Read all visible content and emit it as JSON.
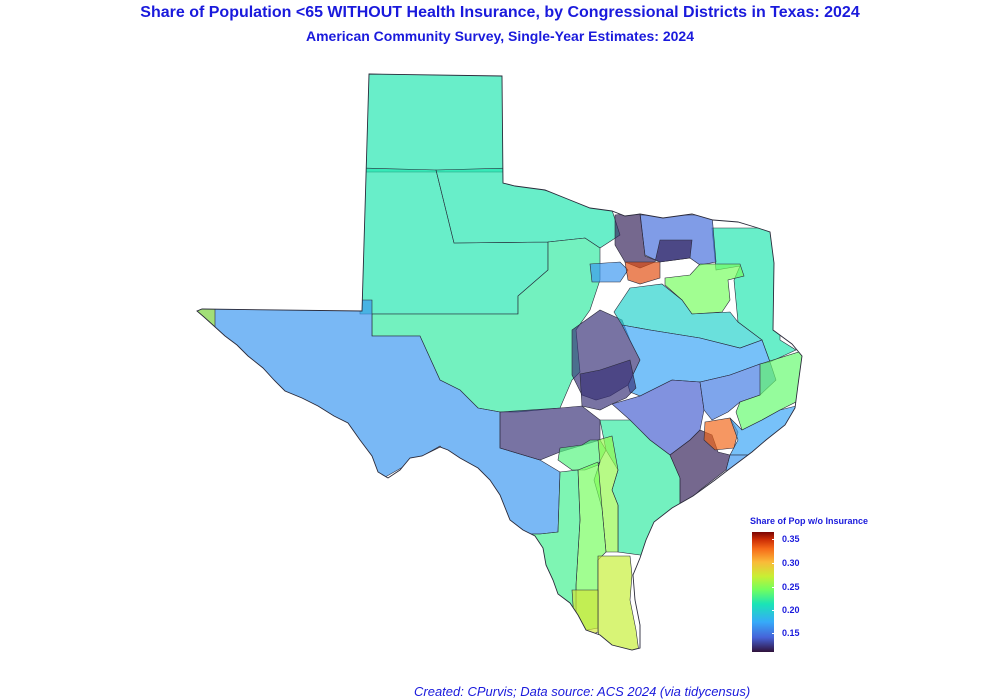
{
  "title": "Share of Population <65 WITHOUT Health Insurance, by Congressional Districts in Texas: 2024",
  "subtitle": "American Community Survey, Single-Year Estimates: 2024",
  "caption": "Created: CPurvis; Data source: ACS 2024 (via tidycensus)",
  "legend": {
    "title": "Share of Pop w/o Insurance",
    "ticks": [
      "0.35",
      "0.30",
      "0.25",
      "0.20",
      "0.15"
    ],
    "colors": [
      "#30123b",
      "#4662d7",
      "#36aaf9",
      "#1ae4b6",
      "#72fe5e",
      "#c8ef34",
      "#faba39",
      "#f66b19",
      "#ca2a04",
      "#7a0403"
    ]
  },
  "map": {
    "region": "Texas",
    "unit": "congressional district",
    "districts": [
      {
        "id": "panhandle",
        "value": 0.205
      },
      {
        "id": "west-central",
        "value": 0.205
      },
      {
        "id": "north-central-plains",
        "value": 0.205
      },
      {
        "id": "concho-valley",
        "value": 0.21
      },
      {
        "id": "far-west",
        "value": 0.17
      },
      {
        "id": "el-paso-tip",
        "value": 0.25
      },
      {
        "id": "hill-country",
        "value": 0.135
      },
      {
        "id": "east-texas",
        "value": 0.205
      },
      {
        "id": "northeast-metro",
        "value": 0.155
      },
      {
        "id": "dfw-north",
        "value": 0.13
      },
      {
        "id": "dfw-west",
        "value": 0.17
      },
      {
        "id": "dfw-core",
        "value": 0.32
      },
      {
        "id": "waco-corridor",
        "value": 0.135
      },
      {
        "id": "central",
        "value": 0.195
      },
      {
        "id": "tyler",
        "value": 0.23
      },
      {
        "id": "brazos",
        "value": 0.175
      },
      {
        "id": "austin-west",
        "value": 0.135
      },
      {
        "id": "south-central",
        "value": 0.15
      },
      {
        "id": "coastal-bend",
        "value": 0.21
      },
      {
        "id": "san-antonio-west",
        "value": 0.135
      },
      {
        "id": "san-antonio-core",
        "value": 0.22
      },
      {
        "id": "south-corridor-1",
        "value": 0.24
      },
      {
        "id": "south-corridor-2",
        "value": 0.23
      },
      {
        "id": "laredo",
        "value": 0.215
      },
      {
        "id": "rio-grande-valley",
        "value": 0.255
      },
      {
        "id": "brownsville",
        "value": 0.26
      },
      {
        "id": "houston-southwest",
        "value": 0.13
      },
      {
        "id": "houston-core",
        "value": 0.31
      },
      {
        "id": "houston-north",
        "value": 0.16
      },
      {
        "id": "beaumont",
        "value": 0.225
      },
      {
        "id": "gulf-coast",
        "value": 0.175
      },
      {
        "id": "east-piney",
        "value": 0.17
      }
    ]
  }
}
